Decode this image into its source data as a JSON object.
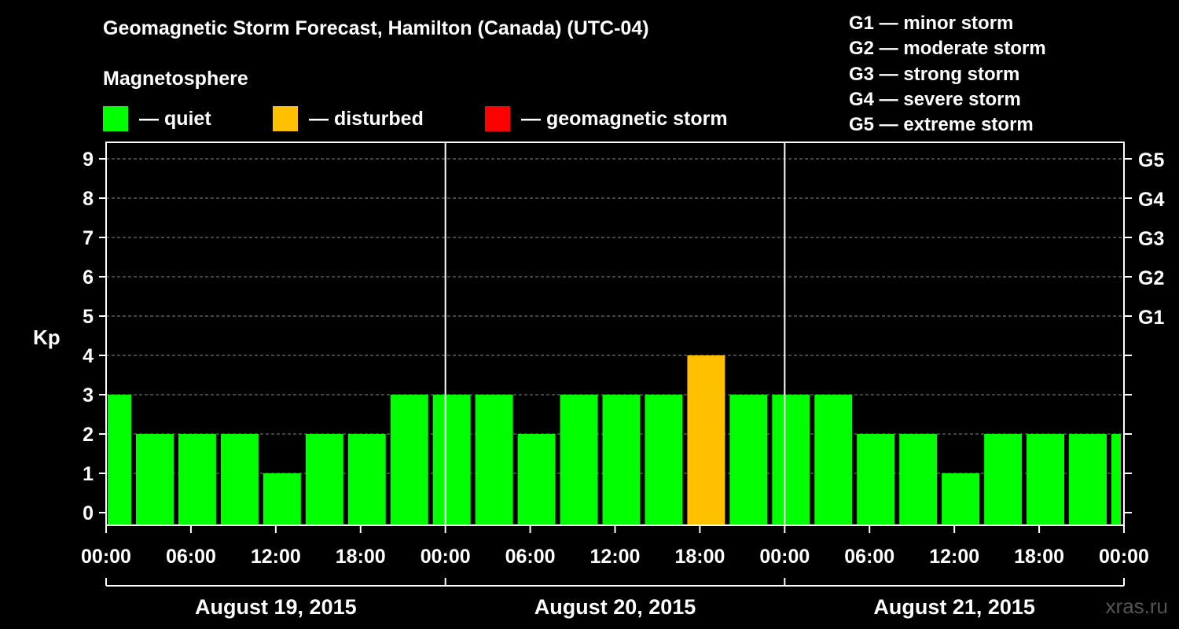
{
  "title": "Geomagnetic Storm Forecast, Hamilton (Canada) (UTC-04)",
  "subtitle": "Magnetosphere",
  "legend": [
    {
      "label": "— quiet",
      "color": "#00FF00"
    },
    {
      "label": "— disturbed",
      "color": "#FFC000"
    },
    {
      "label": "— geomagnetic storm",
      "color": "#FF0000"
    }
  ],
  "storm_scale": [
    "G1 — minor storm",
    "G2 — moderate storm",
    "G3 — strong storm",
    "G4 — severe storm",
    "G5 — extreme storm"
  ],
  "watermark": "xras.ru",
  "chart_data": {
    "type": "bar",
    "title": "Geomagnetic Storm Forecast, Hamilton (Canada) (UTC-04)",
    "ylabel": "Kp",
    "xlabel": "",
    "ylim": [
      0,
      9
    ],
    "yticks": [
      0,
      1,
      2,
      3,
      4,
      5,
      6,
      7,
      8,
      9
    ],
    "right_ticks": [
      {
        "value": 5,
        "label": "G1"
      },
      {
        "value": 6,
        "label": "G2"
      },
      {
        "value": 7,
        "label": "G3"
      },
      {
        "value": 8,
        "label": "G4"
      },
      {
        "value": 9,
        "label": "G5"
      }
    ],
    "grid": true,
    "x_range_hours": [
      0,
      72
    ],
    "interval_hours": 3,
    "first_bar_start_hour": -1,
    "xtick_labels": [
      "00:00",
      "06:00",
      "12:00",
      "18:00",
      "00:00",
      "06:00",
      "12:00",
      "18:00",
      "00:00",
      "06:00",
      "12:00",
      "18:00",
      "00:00"
    ],
    "days": [
      "August 19, 2015",
      "August 20, 2015",
      "August 21, 2015"
    ],
    "values": [
      3,
      2,
      2,
      2,
      1,
      2,
      2,
      3,
      3,
      3,
      2,
      3,
      3,
      3,
      4,
      3,
      3,
      3,
      2,
      2,
      1,
      2,
      2,
      2,
      2
    ],
    "colors": {
      "quiet": "#00FF00",
      "disturbed": "#FFC000",
      "storm": "#FF0000"
    }
  }
}
